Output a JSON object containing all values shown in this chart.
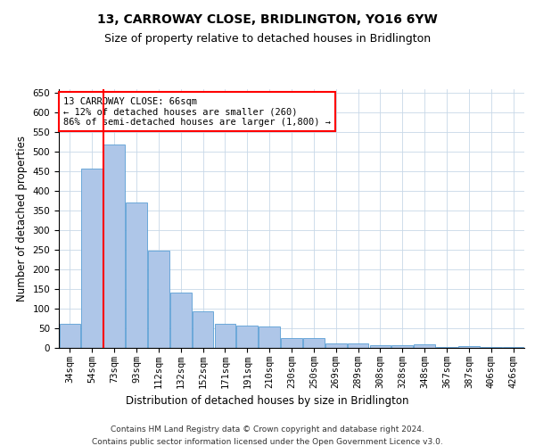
{
  "title": "13, CARROWAY CLOSE, BRIDLINGTON, YO16 6YW",
  "subtitle": "Size of property relative to detached houses in Bridlington",
  "xlabel": "Distribution of detached houses by size in Bridlington",
  "ylabel": "Number of detached properties",
  "footnote1": "Contains HM Land Registry data © Crown copyright and database right 2024.",
  "footnote2": "Contains public sector information licensed under the Open Government Licence v3.0.",
  "categories": [
    "34sqm",
    "54sqm",
    "73sqm",
    "93sqm",
    "112sqm",
    "132sqm",
    "152sqm",
    "171sqm",
    "191sqm",
    "210sqm",
    "230sqm",
    "250sqm",
    "269sqm",
    "289sqm",
    "308sqm",
    "328sqm",
    "348sqm",
    "367sqm",
    "387sqm",
    "406sqm",
    "426sqm"
  ],
  "values": [
    62,
    458,
    520,
    370,
    248,
    140,
    93,
    62,
    57,
    55,
    25,
    25,
    11,
    12,
    6,
    6,
    10,
    3,
    5,
    3,
    3
  ],
  "bar_color": "#aec6e8",
  "bar_edge_color": "#5a9fd4",
  "annotation_line1": "13 CARROWAY CLOSE: 66sqm",
  "annotation_line2": "← 12% of detached houses are smaller (260)",
  "annotation_line3": "86% of semi-detached houses are larger (1,800) →",
  "redline_x": 1.5,
  "ylim": [
    0,
    660
  ],
  "yticks": [
    0,
    50,
    100,
    150,
    200,
    250,
    300,
    350,
    400,
    450,
    500,
    550,
    600,
    650
  ],
  "background_color": "#ffffff",
  "grid_color": "#c8d8e8",
  "title_fontsize": 10,
  "subtitle_fontsize": 9,
  "xlabel_fontsize": 8.5,
  "ylabel_fontsize": 8.5,
  "tick_fontsize": 7.5,
  "annotation_fontsize": 7.5,
  "footnote_fontsize": 6.5
}
